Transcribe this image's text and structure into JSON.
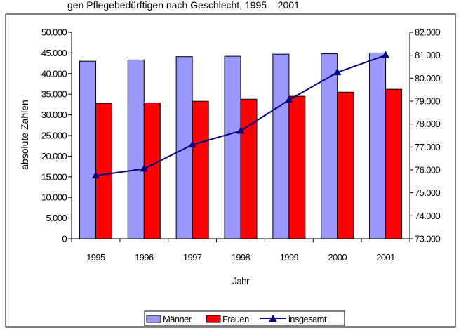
{
  "header_text": "gen Pflegebedürftigen nach Geschlecht, 1995 – 2001",
  "chart_data": {
    "type": "bar",
    "categories": [
      "1995",
      "1996",
      "1997",
      "1998",
      "1999",
      "2000",
      "2001"
    ],
    "series": [
      {
        "name": "Männer",
        "type": "bar",
        "axis": "left",
        "color": "#9999ff",
        "values": [
          43000,
          43300,
          44100,
          44200,
          44700,
          44800,
          45000
        ]
      },
      {
        "name": "Frauen",
        "type": "bar",
        "axis": "left",
        "color": "#ff0000",
        "values": [
          32800,
          32900,
          33300,
          33800,
          34500,
          35500,
          36200
        ]
      },
      {
        "name": "insgesamt",
        "type": "line",
        "axis": "right",
        "color": "#000080",
        "marker": "triangle",
        "values": [
          75750,
          76050,
          77100,
          77700,
          79050,
          80250,
          81000
        ]
      }
    ],
    "xlabel": "Jahr",
    "ylabel": "absolute Zahlen",
    "y_left": {
      "min": 0,
      "max": 50000,
      "step": 5000,
      "tick_labels": [
        "0",
        "5.000",
        "10.000",
        "15.000",
        "20.000",
        "25.000",
        "30.000",
        "35.000",
        "40.000",
        "45.000",
        "50.000"
      ]
    },
    "y_right": {
      "min": 73000,
      "max": 82000,
      "step": 1000,
      "tick_labels": [
        "73.000",
        "74.000",
        "75.000",
        "76.000",
        "77.000",
        "78.000",
        "79.000",
        "80.000",
        "81.000",
        "82.000"
      ]
    },
    "grid": false,
    "legend_position": "bottom"
  }
}
